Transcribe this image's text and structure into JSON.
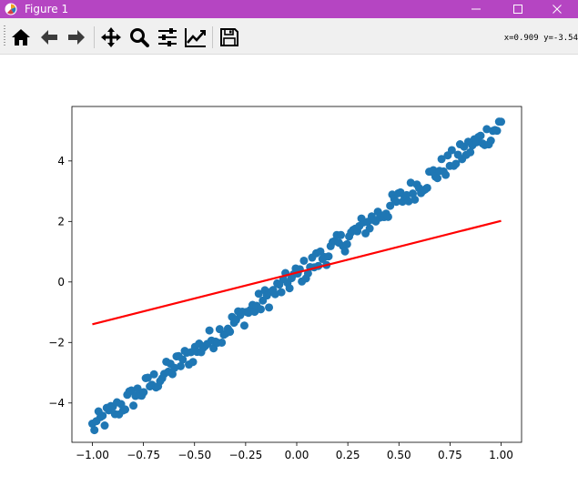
{
  "window": {
    "title": "Figure 1"
  },
  "toolbar": {
    "buttons": [
      {
        "name": "home",
        "icon": "home-icon"
      },
      {
        "name": "back",
        "icon": "arrow-left-icon"
      },
      {
        "name": "forward",
        "icon": "arrow-right-icon"
      },
      {
        "name": "pan",
        "icon": "move-icon"
      },
      {
        "name": "zoom",
        "icon": "magnifier-icon"
      },
      {
        "name": "subplots",
        "icon": "sliders-icon"
      },
      {
        "name": "edit-axes",
        "icon": "line-chart-icon"
      },
      {
        "name": "save",
        "icon": "floppy-disk-icon"
      }
    ],
    "coords": "x=0.909 y=-3.54"
  },
  "chart_data": {
    "type": "scatter",
    "title": "",
    "xlabel": "",
    "ylabel": "",
    "xlim": [
      -1.1,
      1.1
    ],
    "ylim": [
      -5.3,
      5.8
    ],
    "xticks": [
      -1.0,
      -0.75,
      -0.5,
      -0.25,
      0.0,
      0.25,
      0.5,
      0.75,
      1.0
    ],
    "xtick_labels": [
      "−1.00",
      "−0.75",
      "−0.50",
      "−0.25",
      "0.00",
      "0.25",
      "0.50",
      "0.75",
      "1.00"
    ],
    "yticks": [
      -4,
      -2,
      0,
      2,
      4
    ],
    "ytick_labels": [
      "−4",
      "−2",
      "0",
      "2",
      "4"
    ],
    "grid": false,
    "series": [
      {
        "kind": "scatter",
        "color": "#1f77b4",
        "trend": {
          "slope": 5.0,
          "intercept": 0.2
        },
        "x_range": [
          -1.0,
          1.0
        ],
        "count": 200
      },
      {
        "kind": "line",
        "color": "#ff0000",
        "x": [
          -1.0,
          1.0
        ],
        "y": [
          -1.4,
          2.02
        ]
      }
    ]
  }
}
